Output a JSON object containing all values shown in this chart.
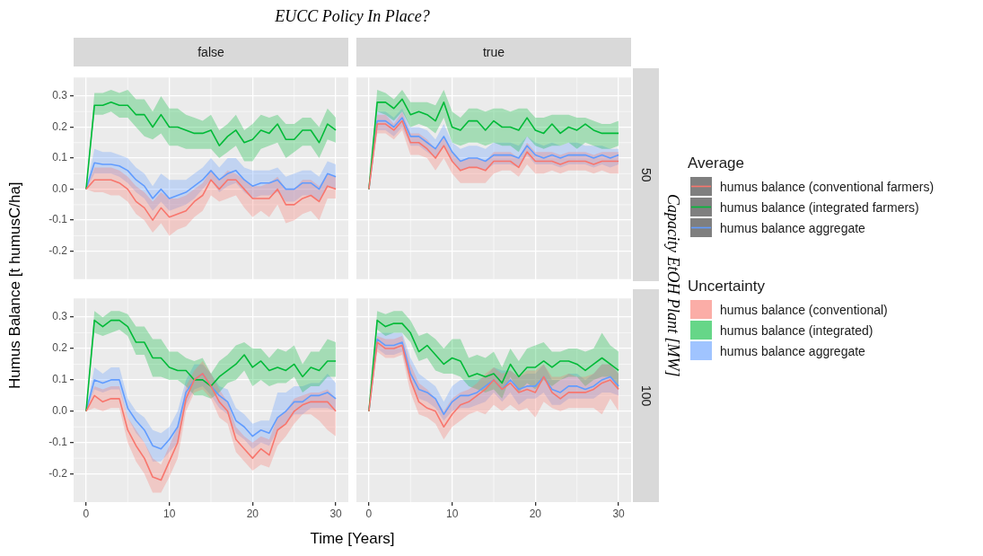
{
  "chart_data": [
    {
      "type": "line",
      "subtitle": "false",
      "ylabel": "Humus Balance [t humusC/ha]",
      "legend": "right",
      "legend_title": "Average",
      "annotations": [
        "Uncertainty",
        "humus balance (conventional)",
        "humus balance (integrated)",
        "humus balance aggregate"
      ],
      "grid": true,
      "tick_labels": "y",
      "x": [
        0,
        1,
        2,
        3,
        4,
        5,
        6,
        7,
        8,
        9,
        10,
        11,
        12,
        13,
        14,
        15,
        16,
        17,
        18,
        19,
        20,
        21,
        22,
        23,
        24,
        25,
        26,
        27,
        28,
        29,
        30
      ],
      "xlim": [
        -1.5,
        31.5
      ],
      "xticks": [
        0,
        10,
        20,
        30
      ],
      "ylim": [
        -0.29,
        0.36
      ],
      "yticks": [
        -0.2,
        -0.1,
        {
          "value": 0,
          "label": "0.0"
        },
        0.1,
        0.2,
        0.3
      ],
      "series": [
        {
          "name": "humus balance (conventional farmers)",
          "color": "#f8766d",
          "values": [
            0,
            0.03,
            0.03,
            0.03,
            0.02,
            0,
            -0.04,
            -0.06,
            -0.1,
            -0.06,
            -0.09,
            -0.08,
            -0.07,
            -0.04,
            -0.02,
            0.03,
            0,
            0.03,
            0.03,
            0,
            -0.03,
            -0.03,
            -0.03,
            0,
            -0.05,
            -0.05,
            -0.03,
            -0.02,
            -0.04,
            0.01,
            0
          ],
          "upper": [
            0,
            0.07,
            0.07,
            0.07,
            0.06,
            0.04,
            0.01,
            -0.01,
            -0.04,
            -0.01,
            -0.03,
            -0.03,
            -0.02,
            0.0,
            0.02,
            0.06,
            0.03,
            0.06,
            0.05,
            0.03,
            0.01,
            0.01,
            0.02,
            0.04,
            0.0,
            0.0,
            0.03,
            0.03,
            0.01,
            0.05,
            0.04
          ],
          "lower": [
            0,
            -0.01,
            -0.01,
            -0.02,
            -0.02,
            -0.04,
            -0.08,
            -0.1,
            -0.14,
            -0.11,
            -0.15,
            -0.13,
            -0.12,
            -0.09,
            -0.07,
            -0.02,
            -0.04,
            -0.03,
            -0.02,
            -0.06,
            -0.09,
            -0.07,
            -0.09,
            -0.05,
            -0.11,
            -0.1,
            -0.08,
            -0.07,
            -0.1,
            -0.03,
            -0.03
          ]
        },
        {
          "name": "humus balance (integrated farmers)",
          "color": "#00ba38",
          "values": [
            0,
            0.27,
            0.27,
            0.28,
            0.27,
            0.27,
            0.24,
            0.24,
            0.2,
            0.24,
            0.2,
            0.2,
            0.19,
            0.18,
            0.18,
            0.19,
            0.14,
            0.17,
            0.19,
            0.15,
            0.16,
            0.19,
            0.18,
            0.21,
            0.16,
            0.16,
            0.19,
            0.19,
            0.15,
            0.21,
            0.19
          ],
          "upper": [
            0,
            0.31,
            0.31,
            0.32,
            0.31,
            0.32,
            0.29,
            0.29,
            0.25,
            0.3,
            0.26,
            0.26,
            0.24,
            0.23,
            0.22,
            0.24,
            0.19,
            0.21,
            0.24,
            0.19,
            0.21,
            0.24,
            0.23,
            0.24,
            0.21,
            0.21,
            0.23,
            0.23,
            0.2,
            0.26,
            0.23
          ],
          "lower": [
            0,
            0.24,
            0.24,
            0.25,
            0.23,
            0.23,
            0.2,
            0.17,
            0.16,
            0.18,
            0.14,
            0.14,
            0.13,
            0.13,
            0.13,
            0.13,
            0.1,
            0.12,
            0.14,
            0.09,
            0.09,
            0.13,
            0.14,
            0.15,
            0.1,
            0.12,
            0.14,
            0.14,
            0.1,
            0.16,
            0.15
          ]
        },
        {
          "name": "humus balance aggregate",
          "color": "#619cff",
          "values": [
            0,
            0.085,
            0.08,
            0.08,
            0.075,
            0.06,
            0.03,
            0.01,
            -0.03,
            0,
            -0.03,
            -0.02,
            -0.01,
            0.01,
            0.03,
            0.06,
            0.03,
            0.05,
            0.06,
            0.03,
            0.01,
            0.02,
            0.02,
            0.03,
            0,
            0,
            0.02,
            0.02,
            0,
            0.05,
            0.04
          ],
          "upper": [
            0,
            0.13,
            0.12,
            0.12,
            0.11,
            0.1,
            0.07,
            0.05,
            0.01,
            0.05,
            0.03,
            0.03,
            0.03,
            0.05,
            0.07,
            0.1,
            0.07,
            0.1,
            0.1,
            0.07,
            0.06,
            0.06,
            0.06,
            0.07,
            0.04,
            0.05,
            0.06,
            0.06,
            0.04,
            0.09,
            0.08
          ],
          "lower": [
            0,
            0.05,
            0.05,
            0.05,
            0.04,
            0.02,
            -0.01,
            -0.03,
            -0.07,
            -0.04,
            -0.07,
            -0.06,
            -0.05,
            -0.03,
            0.0,
            0.03,
            -0.01,
            0.01,
            0.02,
            -0.01,
            -0.03,
            -0.02,
            -0.02,
            -0.01,
            -0.04,
            -0.04,
            -0.02,
            -0.02,
            -0.04,
            0.01,
            0.0
          ]
        }
      ]
    },
    {
      "type": "line",
      "subtitle": "true",
      "y2label": "50",
      "grid": true,
      "tick_labels": false,
      "x": [
        0,
        1,
        2,
        3,
        4,
        5,
        6,
        7,
        8,
        9,
        10,
        11,
        12,
        13,
        14,
        15,
        16,
        17,
        18,
        19,
        20,
        21,
        22,
        23,
        24,
        25,
        26,
        27,
        28,
        29,
        30
      ],
      "xlim": [
        -1.5,
        31.5
      ],
      "xticks": [
        0,
        10,
        20,
        30
      ],
      "ylim": [
        -0.29,
        0.36
      ],
      "yticks": [
        -0.2,
        -0.1,
        0,
        0.1,
        0.2,
        0.3
      ],
      "series": [
        {
          "color": "#f8766d",
          "values": [
            0,
            0.21,
            0.21,
            0.19,
            0.22,
            0.15,
            0.15,
            0.13,
            0.1,
            0.14,
            0.09,
            0.06,
            0.07,
            0.07,
            0.06,
            0.09,
            0.09,
            0.09,
            0.07,
            0.12,
            0.09,
            0.09,
            0.09,
            0.08,
            0.09,
            0.09,
            0.09,
            0.08,
            0.09,
            0.09,
            0.09
          ],
          "upper": [
            0,
            0.24,
            0.24,
            0.21,
            0.25,
            0.18,
            0.18,
            0.16,
            0.13,
            0.17,
            0.12,
            0.09,
            0.1,
            0.1,
            0.09,
            0.12,
            0.12,
            0.12,
            0.1,
            0.15,
            0.12,
            0.12,
            0.12,
            0.11,
            0.12,
            0.12,
            0.12,
            0.11,
            0.12,
            0.12,
            0.12
          ],
          "lower": [
            0,
            0.18,
            0.18,
            0.16,
            0.19,
            0.11,
            0.11,
            0.1,
            0.06,
            0.1,
            0.05,
            0.02,
            0.02,
            0.02,
            0.02,
            0.05,
            0.06,
            0.06,
            0.04,
            0.08,
            0.05,
            0.05,
            0.06,
            0.05,
            0.06,
            0.06,
            0.06,
            0.05,
            0.06,
            0.05,
            0.05
          ]
        },
        {
          "color": "#00ba38",
          "values": [
            0,
            0.28,
            0.28,
            0.26,
            0.29,
            0.24,
            0.25,
            0.24,
            0.22,
            0.28,
            0.2,
            0.19,
            0.22,
            0.22,
            0.19,
            0.22,
            0.2,
            0.2,
            0.19,
            0.23,
            0.19,
            0.18,
            0.21,
            0.18,
            0.2,
            0.19,
            0.21,
            0.19,
            0.18,
            0.18,
            0.18
          ],
          "upper": [
            0,
            0.32,
            0.31,
            0.29,
            0.32,
            0.28,
            0.28,
            0.28,
            0.27,
            0.32,
            0.25,
            0.23,
            0.26,
            0.26,
            0.25,
            0.26,
            0.26,
            0.25,
            0.26,
            0.26,
            0.23,
            0.23,
            0.24,
            0.24,
            0.24,
            0.23,
            0.23,
            0.22,
            0.21,
            0.21,
            0.22
          ],
          "lower": [
            0,
            0.25,
            0.24,
            0.22,
            0.25,
            0.2,
            0.21,
            0.2,
            0.18,
            0.23,
            0.15,
            0.14,
            0.15,
            0.15,
            0.14,
            0.15,
            0.14,
            0.14,
            0.12,
            0.17,
            0.14,
            0.13,
            0.14,
            0.14,
            0.15,
            0.13,
            0.15,
            0.14,
            0.13,
            0.13,
            0.14
          ]
        },
        {
          "color": "#619cff",
          "values": [
            0,
            0.22,
            0.22,
            0.2,
            0.23,
            0.17,
            0.17,
            0.15,
            0.13,
            0.17,
            0.12,
            0.09,
            0.1,
            0.1,
            0.09,
            0.11,
            0.11,
            0.11,
            0.1,
            0.14,
            0.11,
            0.1,
            0.11,
            0.1,
            0.11,
            0.11,
            0.11,
            0.1,
            0.11,
            0.1,
            0.11
          ],
          "upper": [
            0,
            0.25,
            0.25,
            0.23,
            0.26,
            0.2,
            0.2,
            0.19,
            0.16,
            0.21,
            0.15,
            0.13,
            0.14,
            0.14,
            0.13,
            0.15,
            0.15,
            0.15,
            0.14,
            0.17,
            0.15,
            0.14,
            0.15,
            0.14,
            0.15,
            0.15,
            0.14,
            0.14,
            0.14,
            0.13,
            0.13
          ],
          "lower": [
            0,
            0.19,
            0.19,
            0.17,
            0.2,
            0.14,
            0.14,
            0.12,
            0.1,
            0.14,
            0.09,
            0.06,
            0.07,
            0.07,
            0.06,
            0.08,
            0.08,
            0.08,
            0.07,
            0.11,
            0.08,
            0.08,
            0.08,
            0.07,
            0.08,
            0.08,
            0.08,
            0.07,
            0.08,
            0.07,
            0.08
          ]
        }
      ]
    },
    {
      "type": "line",
      "xlabel": "Time [Years]",
      "grid": true,
      "x": [
        0,
        1,
        2,
        3,
        4,
        5,
        6,
        7,
        8,
        9,
        10,
        11,
        12,
        13,
        14,
        15,
        16,
        17,
        18,
        19,
        20,
        21,
        22,
        23,
        24,
        25,
        26,
        27,
        28,
        29,
        30
      ],
      "xlim": [
        -1.5,
        31.5
      ],
      "xticks": [
        0,
        10,
        20,
        30
      ],
      "ylim": [
        -0.29,
        0.36
      ],
      "yticks": [
        -0.2,
        -0.1,
        {
          "value": 0,
          "label": "0.0"
        },
        0.1,
        0.2,
        0.3
      ],
      "series": [
        {
          "color": "#f8766d",
          "values": [
            0,
            0.05,
            0.03,
            0.04,
            0.04,
            -0.06,
            -0.11,
            -0.15,
            -0.21,
            -0.22,
            -0.16,
            -0.1,
            0.04,
            0.1,
            0.12,
            0.08,
            0.03,
            0,
            -0.09,
            -0.12,
            -0.15,
            -0.12,
            -0.14,
            -0.06,
            -0.04,
            0,
            0.02,
            0.03,
            0.03,
            0.03,
            0
          ],
          "upper": [
            0,
            0.08,
            0.07,
            0.08,
            0.08,
            -0.02,
            -0.06,
            -0.1,
            -0.15,
            -0.17,
            -0.11,
            -0.05,
            0.08,
            0.13,
            0.16,
            0.12,
            0.07,
            0.03,
            -0.05,
            -0.08,
            -0.1,
            -0.08,
            -0.09,
            -0.02,
            0.0,
            0.04,
            0.05,
            0.06,
            0.06,
            0.07,
            0.04
          ],
          "lower": [
            0,
            0.01,
            0.0,
            0.01,
            0.01,
            -0.1,
            -0.16,
            -0.2,
            -0.26,
            -0.26,
            -0.21,
            -0.15,
            0.0,
            0.06,
            0.07,
            0.04,
            -0.02,
            -0.04,
            -0.13,
            -0.16,
            -0.19,
            -0.17,
            -0.18,
            -0.11,
            -0.08,
            -0.04,
            -0.01,
            -0.01,
            -0.03,
            -0.06,
            -0.08
          ]
        },
        {
          "color": "#00ba38",
          "values": [
            0,
            0.29,
            0.27,
            0.29,
            0.29,
            0.27,
            0.22,
            0.22,
            0.17,
            0.17,
            0.14,
            0.13,
            0.13,
            0.1,
            0.1,
            0.08,
            0.11,
            0.13,
            0.15,
            0.18,
            0.14,
            0.16,
            0.13,
            0.14,
            0.13,
            0.15,
            0.11,
            0.14,
            0.13,
            0.16,
            0.16
          ],
          "upper": [
            0,
            0.32,
            0.3,
            0.32,
            0.32,
            0.31,
            0.27,
            0.27,
            0.23,
            0.23,
            0.19,
            0.19,
            0.17,
            0.16,
            0.17,
            0.12,
            0.16,
            0.18,
            0.21,
            0.22,
            0.2,
            0.2,
            0.17,
            0.2,
            0.19,
            0.21,
            0.15,
            0.19,
            0.19,
            0.23,
            0.22
          ],
          "lower": [
            0,
            0.25,
            0.24,
            0.25,
            0.26,
            0.24,
            0.18,
            0.18,
            0.11,
            0.11,
            0.1,
            0.1,
            0.08,
            0.05,
            0.05,
            0.04,
            0.06,
            0.09,
            0.1,
            0.13,
            0.08,
            0.1,
            0.08,
            0.09,
            0.09,
            0.11,
            0.06,
            0.08,
            0.08,
            0.11,
            0.11
          ]
        },
        {
          "color": "#619cff",
          "values": [
            0,
            0.1,
            0.09,
            0.1,
            0.1,
            0.01,
            -0.03,
            -0.06,
            -0.11,
            -0.12,
            -0.09,
            -0.05,
            0.06,
            0.1,
            0.12,
            0.08,
            0.05,
            0.03,
            -0.03,
            -0.05,
            -0.08,
            -0.06,
            -0.07,
            -0.02,
            0,
            0.03,
            0.03,
            0.05,
            0.05,
            0.06,
            0.04
          ],
          "upper": [
            0,
            0.14,
            0.12,
            0.14,
            0.14,
            0.04,
            0.0,
            -0.02,
            -0.06,
            -0.07,
            -0.05,
            0.0,
            0.1,
            0.15,
            0.15,
            0.12,
            0.08,
            0.07,
            0.01,
            -0.01,
            -0.04,
            -0.03,
            -0.03,
            0.06,
            0.06,
            0.08,
            0.08,
            0.09,
            0.09,
            0.12,
            0.09
          ],
          "lower": [
            0,
            0.07,
            0.06,
            0.07,
            0.07,
            -0.02,
            -0.07,
            -0.1,
            -0.16,
            -0.16,
            -0.13,
            -0.1,
            0.02,
            0.07,
            0.08,
            0.05,
            0.01,
            -0.01,
            -0.07,
            -0.09,
            -0.12,
            -0.1,
            -0.11,
            -0.06,
            -0.04,
            -0.01,
            -0.01,
            0.01,
            0.01,
            0.01,
            0.0
          ]
        }
      ]
    },
    {
      "type": "line",
      "y2label": "100",
      "grid": true,
      "tick_labels": "x",
      "x": [
        0,
        1,
        2,
        3,
        4,
        5,
        6,
        7,
        8,
        9,
        10,
        11,
        12,
        13,
        14,
        15,
        16,
        17,
        18,
        19,
        20,
        21,
        22,
        23,
        24,
        25,
        26,
        27,
        28,
        29,
        30
      ],
      "xlim": [
        -1.5,
        31.5
      ],
      "xticks": [
        0,
        10,
        20,
        30
      ],
      "ylim": [
        -0.29,
        0.36
      ],
      "yticks": [
        -0.2,
        -0.1,
        0,
        0.1,
        0.2,
        0.3
      ],
      "series": [
        {
          "color": "#f8766d",
          "values": [
            0,
            0.22,
            0.2,
            0.2,
            0.21,
            0.1,
            0.03,
            0.01,
            0,
            -0.05,
            -0.01,
            0.02,
            0.03,
            0.05,
            0.07,
            0.1,
            0.07,
            0.09,
            0.06,
            0.07,
            0.06,
            0.11,
            0.06,
            0.04,
            0.06,
            0.06,
            0.06,
            0.07,
            0.09,
            0.1,
            0.07
          ],
          "upper": [
            0,
            0.24,
            0.23,
            0.23,
            0.24,
            0.15,
            0.09,
            0.07,
            0.04,
            0.0,
            0.04,
            0.06,
            0.07,
            0.09,
            0.12,
            0.14,
            0.12,
            0.13,
            0.11,
            0.13,
            0.13,
            0.15,
            0.11,
            0.11,
            0.12,
            0.11,
            0.11,
            0.12,
            0.15,
            0.15,
            0.12
          ],
          "lower": [
            0,
            0.19,
            0.17,
            0.17,
            0.18,
            0.06,
            -0.01,
            -0.02,
            -0.04,
            -0.09,
            -0.05,
            -0.03,
            -0.01,
            0.0,
            -0.01,
            0.02,
            0.0,
            0.02,
            0.0,
            0.01,
            -0.02,
            0.03,
            0.01,
            0.0,
            0.01,
            0.01,
            0.01,
            0.01,
            -0.01,
            0.04,
            0.0
          ]
        },
        {
          "color": "#00ba38",
          "values": [
            0,
            0.29,
            0.27,
            0.28,
            0.28,
            0.25,
            0.19,
            0.21,
            0.18,
            0.15,
            0.17,
            0.16,
            0.11,
            0.12,
            0.11,
            0.12,
            0.09,
            0.15,
            0.11,
            0.14,
            0.14,
            0.16,
            0.14,
            0.16,
            0.16,
            0.15,
            0.13,
            0.15,
            0.17,
            0.15,
            0.13
          ],
          "upper": [
            0,
            0.32,
            0.31,
            0.32,
            0.32,
            0.29,
            0.24,
            0.25,
            0.23,
            0.2,
            0.23,
            0.23,
            0.17,
            0.18,
            0.17,
            0.19,
            0.14,
            0.2,
            0.16,
            0.2,
            0.21,
            0.22,
            0.19,
            0.19,
            0.2,
            0.2,
            0.19,
            0.2,
            0.25,
            0.21,
            0.19
          ],
          "lower": [
            0,
            0.26,
            0.24,
            0.25,
            0.25,
            0.22,
            0.16,
            0.17,
            0.13,
            0.12,
            0.12,
            0.11,
            0.08,
            0.07,
            0.06,
            0.07,
            0.04,
            0.11,
            0.06,
            0.09,
            0.07,
            0.1,
            0.08,
            0.1,
            0.11,
            0.11,
            0.08,
            0.1,
            0.11,
            0.11,
            0.07
          ]
        },
        {
          "color": "#619cff",
          "values": [
            0,
            0.23,
            0.21,
            0.21,
            0.22,
            0.12,
            0.07,
            0.06,
            0.04,
            -0.01,
            0.03,
            0.05,
            0.05,
            0.06,
            0.08,
            0.1,
            0.07,
            0.1,
            0.07,
            0.08,
            0.08,
            0.11,
            0.07,
            0.06,
            0.08,
            0.08,
            0.07,
            0.08,
            0.1,
            0.11,
            0.08
          ],
          "upper": [
            0,
            0.25,
            0.25,
            0.25,
            0.25,
            0.17,
            0.12,
            0.1,
            0.08,
            0.03,
            0.08,
            0.1,
            0.1,
            0.1,
            0.11,
            0.14,
            0.13,
            0.13,
            0.11,
            0.12,
            0.12,
            0.15,
            0.1,
            0.1,
            0.12,
            0.12,
            0.1,
            0.12,
            0.15,
            0.15,
            0.12
          ],
          "lower": [
            0,
            0.2,
            0.18,
            0.18,
            0.19,
            0.09,
            0.04,
            0.03,
            0.01,
            -0.03,
            0.0,
            0.01,
            0.01,
            0.02,
            0.03,
            0.06,
            0.03,
            0.06,
            0.02,
            0.04,
            0.04,
            0.06,
            0.02,
            0.02,
            0.04,
            0.04,
            0.04,
            0.04,
            0.06,
            0.06,
            0.05
          ]
        }
      ]
    },
    {
      "type": "other",
      "title": "EUCC Policy In Place?",
      "annotations": [
        "Capacity EtOH Plant [MW]"
      ]
    }
  ]
}
